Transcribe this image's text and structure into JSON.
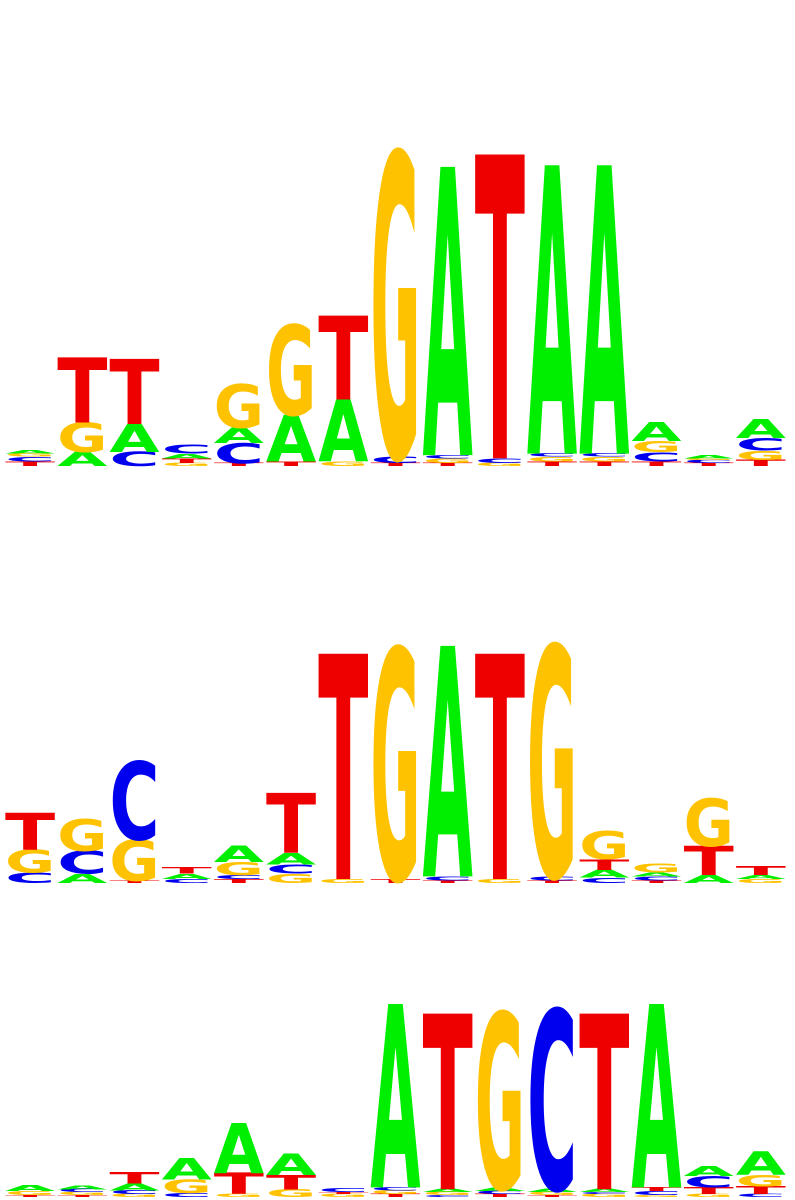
{
  "colors": {
    "A": "#00ee00",
    "C": "#0000ee",
    "G": "#ffc200",
    "T": "#ee0000"
  },
  "motifs": [
    {
      "positions": [
        [
          [
            "T",
            0.015
          ],
          [
            "C",
            0.015
          ],
          [
            "G",
            0.01
          ],
          [
            "A",
            0.01
          ]
        ],
        [
          [
            "A",
            0.045
          ],
          [
            "G",
            0.095
          ],
          [
            "T",
            0.21
          ]
        ],
        [
          [
            "C",
            0.045
          ],
          [
            "A",
            0.09
          ],
          [
            "T",
            0.21
          ]
        ],
        [
          [
            "G",
            0.01
          ],
          [
            "T",
            0.015
          ],
          [
            "A",
            0.015
          ],
          [
            "C",
            0.03
          ]
        ],
        [
          [
            "T",
            0.01
          ],
          [
            "C",
            0.065
          ],
          [
            "A",
            0.05
          ],
          [
            "G",
            0.14
          ]
        ],
        [
          [
            "T",
            0.015
          ],
          [
            "A",
            0.15
          ],
          [
            "G",
            0.29
          ]
        ],
        [
          [
            "G",
            0.015
          ],
          [
            "A",
            0.2
          ],
          [
            "T",
            0.27
          ]
        ],
        [
          [
            "T",
            0.01
          ],
          [
            "C",
            0.02
          ],
          [
            "G",
            0.98
          ]
        ],
        [
          [
            "T",
            0.01
          ],
          [
            "G",
            0.015
          ],
          [
            "C",
            0.01
          ],
          [
            "A",
            0.93
          ]
        ],
        [
          [
            "G",
            0.01
          ],
          [
            "C",
            0.015
          ],
          [
            "T",
            0.98
          ]
        ],
        [
          [
            "T",
            0.015
          ],
          [
            "G",
            0.015
          ],
          [
            "C",
            0.01
          ],
          [
            "A",
            0.93
          ]
        ],
        [
          [
            "T",
            0.015
          ],
          [
            "G",
            0.015
          ],
          [
            "C",
            0.01
          ],
          [
            "A",
            0.93
          ]
        ],
        [
          [
            "T",
            0.015
          ],
          [
            "C",
            0.03
          ],
          [
            "G",
            0.035
          ],
          [
            "A",
            0.06
          ]
        ],
        [
          [
            "T",
            0.01
          ],
          [
            "C",
            0.01
          ],
          [
            "G",
            0.005
          ],
          [
            "A",
            0.01
          ]
        ],
        [
          [
            "T",
            0.02
          ],
          [
            "G",
            0.03
          ],
          [
            "C",
            0.04
          ],
          [
            "A",
            0.06
          ]
        ]
      ]
    },
    {
      "positions": [
        [
          [
            "C",
            0.04
          ],
          [
            "G",
            0.085
          ],
          [
            "T",
            0.14
          ]
        ],
        [
          [
            "A",
            0.035
          ],
          [
            "C",
            0.085
          ],
          [
            "G",
            0.12
          ]
        ],
        [
          [
            "T",
            0.01
          ],
          [
            "G",
            0.155
          ],
          [
            "C",
            0.295
          ]
        ],
        [
          [
            "C",
            0.015
          ],
          [
            "A",
            0.02
          ],
          [
            "T",
            0.025
          ]
        ],
        [
          [
            "T",
            0.015
          ],
          [
            "C",
            0.015
          ],
          [
            "G",
            0.05
          ],
          [
            "A",
            0.06
          ]
        ],
        [
          [
            "G",
            0.035
          ],
          [
            "C",
            0.035
          ],
          [
            "A",
            0.045
          ],
          [
            "T",
            0.225
          ]
        ],
        [
          [
            "G",
            0.015
          ],
          [
            "T",
            0.85
          ]
        ],
        [
          [
            "T",
            0.015
          ],
          [
            "G",
            0.87
          ]
        ],
        [
          [
            "T",
            0.01
          ],
          [
            "C",
            0.015
          ],
          [
            "A",
            0.87
          ]
        ],
        [
          [
            "G",
            0.015
          ],
          [
            "T",
            0.85
          ]
        ],
        [
          [
            "T",
            0.01
          ],
          [
            "C",
            0.015
          ],
          [
            "G",
            0.87
          ]
        ],
        [
          [
            "C",
            0.02
          ],
          [
            "A",
            0.03
          ],
          [
            "T",
            0.04
          ],
          [
            "G",
            0.105
          ]
        ],
        [
          [
            "T",
            0.01
          ],
          [
            "C",
            0.015
          ],
          [
            "A",
            0.015
          ],
          [
            "G",
            0.035
          ]
        ],
        [
          [
            "A",
            0.03
          ],
          [
            "T",
            0.11
          ],
          [
            "G",
            0.18
          ]
        ],
        [
          [
            "G",
            0.015
          ],
          [
            "A",
            0.015
          ],
          [
            "T",
            0.035
          ]
        ]
      ]
    },
    {
      "positions": [
        [
          [
            "T",
            0.01
          ],
          [
            "G",
            0.02
          ],
          [
            "A",
            0.03
          ]
        ],
        [
          [
            "T",
            0.01
          ],
          [
            "G",
            0.015
          ],
          [
            "C",
            0.015
          ],
          [
            "A",
            0.02
          ]
        ],
        [
          [
            "G",
            0.015
          ],
          [
            "C",
            0.02
          ],
          [
            "A",
            0.035
          ],
          [
            "T",
            0.06
          ]
        ],
        [
          [
            "C",
            0.02
          ],
          [
            "G",
            0.07
          ],
          [
            "A",
            0.11
          ]
        ],
        [
          [
            "G",
            0.015
          ],
          [
            "T",
            0.11
          ],
          [
            "A",
            0.26
          ]
        ],
        [
          [
            "G",
            0.04
          ],
          [
            "T",
            0.075
          ],
          [
            "A",
            0.11
          ]
        ],
        [
          [
            "G",
            0.015
          ],
          [
            "T",
            0.01
          ],
          [
            "C",
            0.02
          ]
        ],
        [
          [
            "T",
            0.015
          ],
          [
            "G",
            0.02
          ],
          [
            "C",
            0.015
          ],
          [
            "A",
            0.95
          ]
        ],
        [
          [
            "C",
            0.01
          ],
          [
            "G",
            0.015
          ],
          [
            "A",
            0.015
          ],
          [
            "T",
            0.91
          ]
        ],
        [
          [
            "T",
            0.015
          ],
          [
            "C",
            0.015
          ],
          [
            "A",
            0.015
          ],
          [
            "G",
            0.91
          ]
        ],
        [
          [
            "T",
            0.01
          ],
          [
            "G",
            0.015
          ],
          [
            "A",
            0.015
          ],
          [
            "C",
            0.93
          ]
        ],
        [
          [
            "G",
            0.015
          ],
          [
            "C",
            0.01
          ],
          [
            "A",
            0.015
          ],
          [
            "T",
            0.91
          ]
        ],
        [
          [
            "G",
            0.01
          ],
          [
            "C",
            0.02
          ],
          [
            "T",
            0.02
          ],
          [
            "A",
            0.95
          ]
        ],
        [
          [
            "G",
            0.015
          ],
          [
            "T",
            0.035
          ],
          [
            "C",
            0.06
          ],
          [
            "A",
            0.05
          ]
        ],
        [
          [
            "C",
            0.015
          ],
          [
            "T",
            0.04
          ],
          [
            "G",
            0.06
          ],
          [
            "A",
            0.12
          ]
        ]
      ]
    }
  ]
}
